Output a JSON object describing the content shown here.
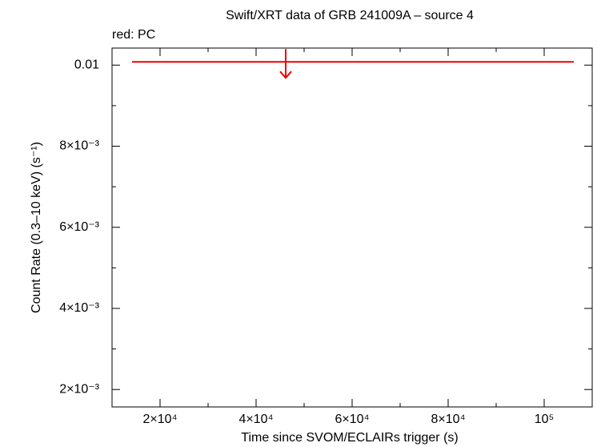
{
  "chart_data": {
    "type": "upper-limit",
    "title": "Swift/XRT data of GRB 241009A – source 4",
    "annotation": "red: PC",
    "x_label": "Time since SVOM/ECLAIRs trigger (s)",
    "y_label": "Count Rate (0.3–10 keV) (s⁻¹)",
    "xlim": [
      10000,
      110000
    ],
    "ylim": [
      0.00157,
      0.01042
    ],
    "xticks": [
      {
        "value": 20000,
        "label": "2×10⁴"
      },
      {
        "value": 40000,
        "label": "4×10⁴"
      },
      {
        "value": 60000,
        "label": "6×10⁴"
      },
      {
        "value": 80000,
        "label": "8×10⁴"
      },
      {
        "value": 100000,
        "label": "10⁵"
      }
    ],
    "xminorticks": [
      30000,
      50000,
      70000,
      90000
    ],
    "yticks": [
      {
        "value": 0.002,
        "label": "2×10⁻³"
      },
      {
        "value": 0.004,
        "label": "4×10⁻³"
      },
      {
        "value": 0.006,
        "label": "6×10⁻³"
      },
      {
        "value": 0.008,
        "label": "8×10⁻³"
      },
      0.01
    ],
    "yminorticks": [
      0.003,
      0.005,
      0.007,
      0.009
    ],
    "series": [
      {
        "color": "#ee0000",
        "x": [
          46167
        ],
        "x_start": [
          14167
        ],
        "x_end": [
          106167
        ],
        "values": [
          0.01008
        ]
      }
    ]
  }
}
